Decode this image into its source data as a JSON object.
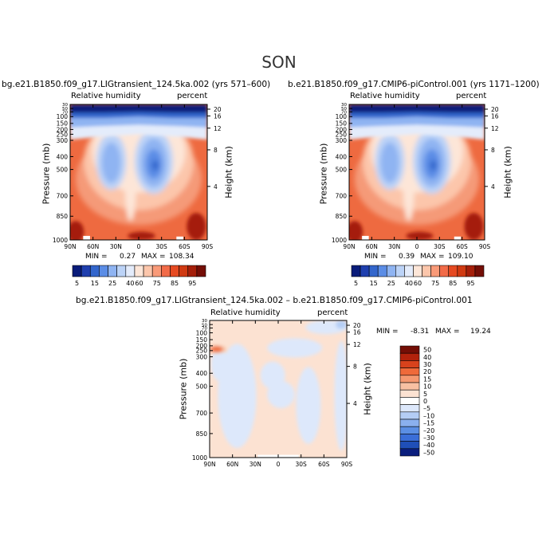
{
  "figure": {
    "title": "SON"
  },
  "chart_data": [
    {
      "type": "heatmap",
      "title": "bg.e21.B1850.f09_g17.LIGtransient_124.5ka.002 (yrs 571–600)",
      "left_label": "Relative humidity",
      "right_label": "percent",
      "ylabel": "Pressure (mb)",
      "ylabel_right": "Height (km)",
      "x_ticks": [
        "90N",
        "60N",
        "30N",
        "0",
        "30S",
        "60S",
        "90S"
      ],
      "y_ticks": [
        "30",
        "50",
        "70",
        "100",
        "150",
        "200",
        "250",
        "300",
        "400",
        "500",
        "700",
        "850",
        "1000"
      ],
      "height_ticks": [
        "20",
        "16",
        "12",
        "8",
        "4"
      ],
      "min_label": "MIN =",
      "min": "0.27",
      "max_label": "MAX =",
      "max": "108.34",
      "colorbar": {
        "levels": [
          "5",
          "15",
          "25",
          "40",
          "60",
          "75",
          "85",
          "95"
        ]
      }
    },
    {
      "type": "heatmap",
      "title": "b.e21.B1850.f09_g17.CMIP6-piControl.001 (yrs 1171–1200)",
      "left_label": "Relative humidity",
      "right_label": "percent",
      "ylabel": "Pressure (mb)",
      "ylabel_right": "Height (km)",
      "x_ticks": [
        "90N",
        "60N",
        "30N",
        "0",
        "30S",
        "60S",
        "90S"
      ],
      "y_ticks": [
        "30",
        "50",
        "70",
        "100",
        "150",
        "200",
        "250",
        "300",
        "400",
        "500",
        "700",
        "850",
        "1000"
      ],
      "height_ticks": [
        "20",
        "16",
        "12",
        "8",
        "4"
      ],
      "min_label": "MIN =",
      "min": "0.39",
      "max_label": "MAX =",
      "max": "109.10",
      "colorbar": {
        "levels": [
          "5",
          "15",
          "25",
          "40",
          "60",
          "75",
          "85",
          "95"
        ]
      }
    },
    {
      "type": "heatmap",
      "title": "bg.e21.B1850.f09_g17.LIGtransient_124.5ka.002 – b.e21.B1850.f09_g17.CMIP6-piControl.001",
      "left_label": "Relative humidity",
      "right_label": "percent",
      "ylabel": "Pressure (mb)",
      "ylabel_right": "Height (km)",
      "x_ticks": [
        "90N",
        "60N",
        "30N",
        "0",
        "30S",
        "60S",
        "90S"
      ],
      "y_ticks": [
        "30",
        "50",
        "70",
        "100",
        "150",
        "200",
        "250",
        "300",
        "400",
        "500",
        "700",
        "850",
        "1000"
      ],
      "height_ticks": [
        "20",
        "16",
        "12",
        "8",
        "4"
      ],
      "min_label": "MIN =",
      "min": "-8.31",
      "max_label": "MAX =",
      "max": "19.24",
      "colorbar": {
        "levels": [
          "50",
          "40",
          "30",
          "20",
          "15",
          "10",
          "5",
          "0",
          "–5",
          "–10",
          "–15",
          "–20",
          "–30",
          "–40",
          "–50"
        ]
      }
    }
  ]
}
